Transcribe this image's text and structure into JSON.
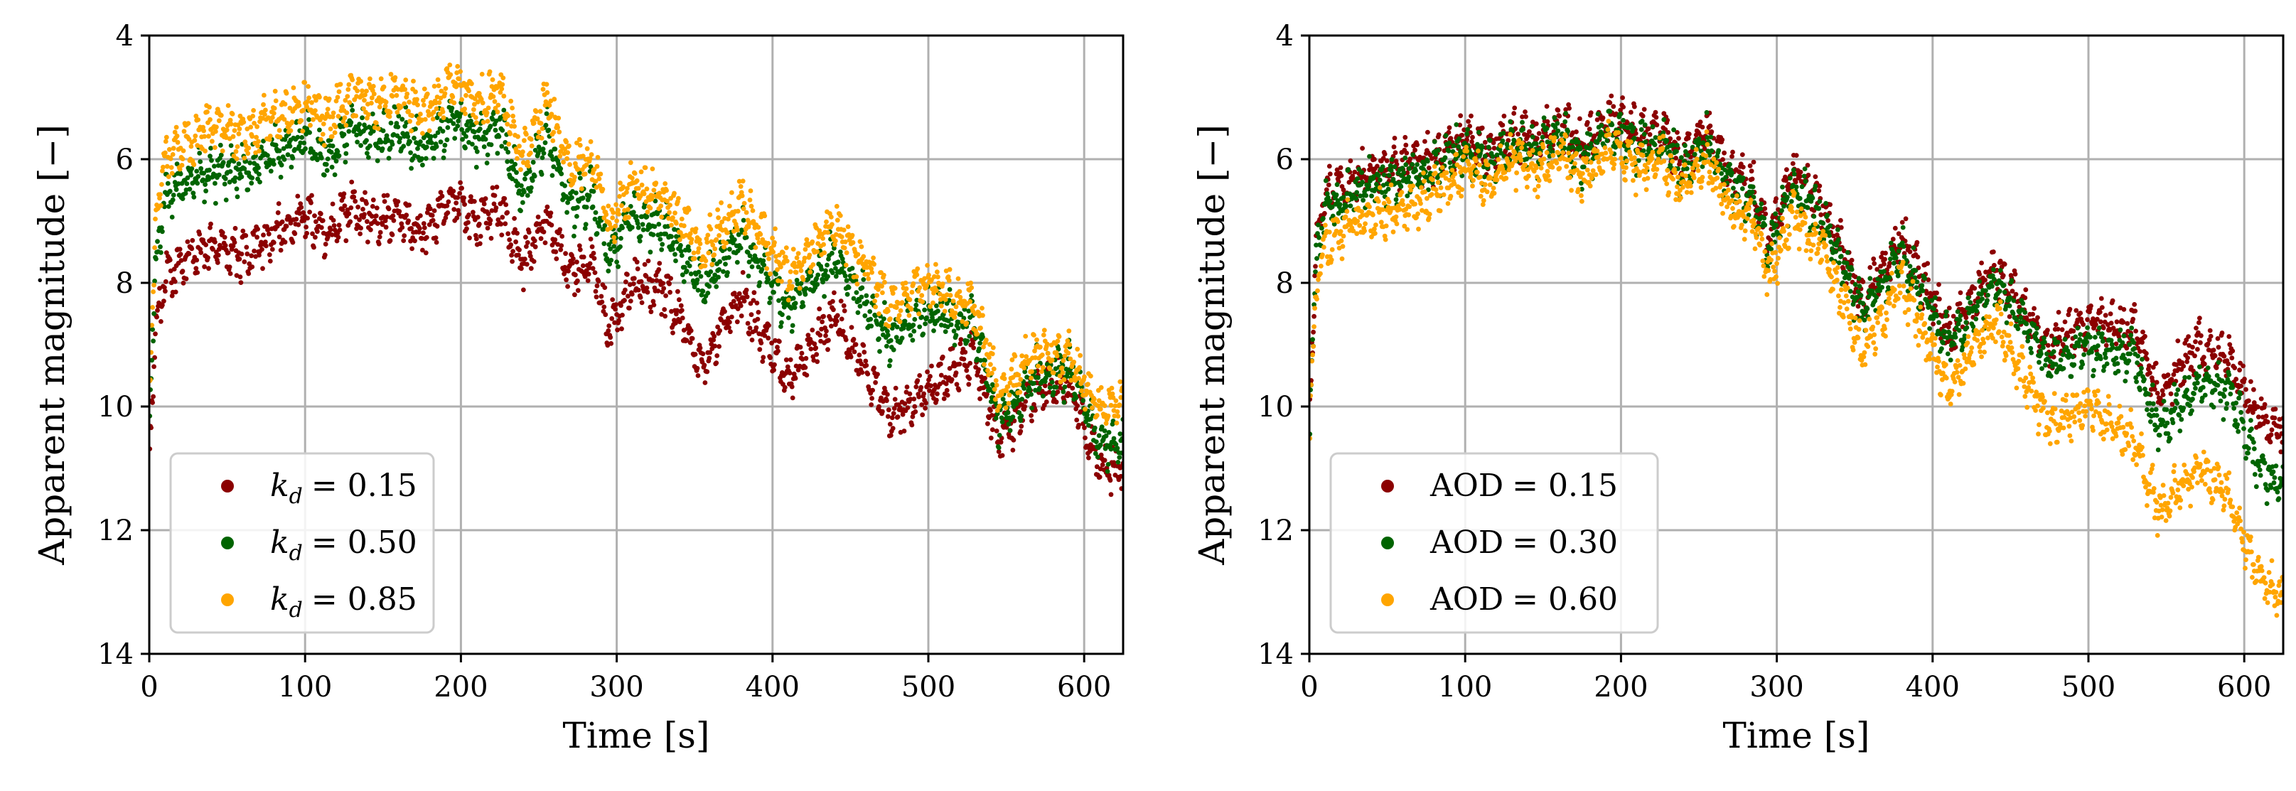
{
  "chart_data": [
    {
      "type": "scatter",
      "title": "",
      "xlabel": "Time [s]",
      "ylabel": "Apparent magnitude [−]",
      "xlim": [
        0,
        625
      ],
      "ylim": [
        14,
        4
      ],
      "y_inverted": true,
      "xticks": [
        "0",
        "100",
        "200",
        "300",
        "400",
        "500",
        "600"
      ],
      "yticks": [
        "4",
        "6",
        "8",
        "10",
        "12",
        "14"
      ],
      "grid": true,
      "legend_position": "lower-left",
      "series": [
        {
          "label_symbol": "k_d",
          "label_value": "= 0.15",
          "color": "#8b0000",
          "x": [
            0,
            5,
            10,
            20,
            40,
            60,
            80,
            100,
            115,
            130,
            145,
            160,
            175,
            195,
            210,
            225,
            240,
            255,
            270,
            285,
            295,
            310,
            330,
            355,
            380,
            410,
            440,
            475,
            500,
            530,
            545,
            570,
            590,
            610,
            625
          ],
          "y": [
            10.5,
            8.6,
            7.9,
            7.7,
            7.4,
            7.6,
            7.2,
            6.9,
            7.2,
            6.8,
            7.0,
            6.9,
            7.2,
            6.6,
            7.0,
            6.8,
            7.7,
            6.9,
            7.8,
            7.7,
            8.8,
            8.0,
            8.1,
            9.3,
            8.2,
            9.6,
            8.5,
            10.2,
            9.7,
            9.2,
            10.6,
            9.7,
            9.6,
            11.0,
            11.0
          ]
        },
        {
          "label_symbol": "k_d",
          "label_value": "= 0.50",
          "color": "#006400",
          "x": [
            0,
            5,
            10,
            20,
            40,
            60,
            80,
            100,
            115,
            130,
            145,
            160,
            175,
            195,
            210,
            225,
            240,
            255,
            270,
            285,
            295,
            310,
            330,
            355,
            380,
            410,
            440,
            475,
            500,
            530,
            545,
            570,
            590,
            610,
            625
          ],
          "y": [
            10.0,
            7.5,
            6.6,
            6.4,
            6.2,
            6.2,
            5.9,
            5.6,
            6.0,
            5.5,
            5.7,
            5.5,
            5.9,
            5.3,
            5.7,
            5.5,
            6.6,
            5.6,
            6.8,
            6.6,
            7.6,
            6.9,
            7.1,
            8.1,
            7.2,
            8.4,
            7.6,
            8.9,
            8.4,
            8.7,
            10.2,
            9.5,
            9.4,
            10.6,
            10.6
          ]
        },
        {
          "label_symbol": "k_d",
          "label_value": "= 0.85",
          "color": "#ffa500",
          "x": [
            0,
            5,
            10,
            20,
            40,
            60,
            80,
            100,
            115,
            130,
            145,
            160,
            175,
            195,
            210,
            225,
            240,
            255,
            270,
            285,
            295,
            310,
            330,
            355,
            380,
            410,
            440,
            475,
            500,
            530,
            545,
            570,
            590,
            610,
            625
          ],
          "y": [
            9.6,
            6.8,
            6.0,
            5.8,
            5.5,
            5.6,
            5.3,
            5.1,
            5.4,
            4.9,
            5.1,
            4.9,
            5.3,
            4.7,
            5.1,
            4.9,
            6.0,
            5.0,
            6.2,
            6.0,
            7.1,
            6.4,
            6.6,
            7.5,
            6.7,
            7.9,
            7.0,
            8.4,
            8.0,
            8.4,
            9.8,
            9.1,
            9.2,
            10.0,
            10.0
          ]
        }
      ]
    },
    {
      "type": "scatter",
      "title": "",
      "xlabel": "Time [s]",
      "ylabel": "Apparent magnitude [−]",
      "xlim": [
        0,
        625
      ],
      "ylim": [
        14,
        4
      ],
      "y_inverted": true,
      "xticks": [
        "0",
        "100",
        "200",
        "300",
        "400",
        "500",
        "600"
      ],
      "yticks": [
        "4",
        "6",
        "8",
        "10",
        "12",
        "14"
      ],
      "grid": true,
      "legend_position": "lower-left",
      "series": [
        {
          "label_symbol": "AOD",
          "label_value": "= 0.15",
          "color": "#8b0000",
          "x": [
            0,
            5,
            10,
            20,
            40,
            60,
            80,
            100,
            115,
            130,
            145,
            160,
            175,
            195,
            210,
            225,
            240,
            255,
            270,
            285,
            295,
            310,
            330,
            355,
            380,
            410,
            440,
            475,
            500,
            530,
            545,
            570,
            590,
            610,
            625
          ],
          "y": [
            10.0,
            7.2,
            6.6,
            6.5,
            6.2,
            6.1,
            6.0,
            5.6,
            5.9,
            5.6,
            5.7,
            5.4,
            5.8,
            5.3,
            5.6,
            5.5,
            6.0,
            5.5,
            6.2,
            6.5,
            7.3,
            6.2,
            6.8,
            8.3,
            7.3,
            8.8,
            7.8,
            9.0,
            8.6,
            8.8,
            9.8,
            9.0,
            9.2,
            10.2,
            10.4
          ]
        },
        {
          "label_symbol": "AOD",
          "label_value": "= 0.30",
          "color": "#006400",
          "x": [
            0,
            5,
            10,
            20,
            40,
            60,
            80,
            100,
            115,
            130,
            145,
            160,
            175,
            195,
            210,
            225,
            240,
            255,
            270,
            285,
            295,
            310,
            330,
            355,
            380,
            410,
            440,
            475,
            500,
            530,
            545,
            570,
            590,
            610,
            625
          ],
          "y": [
            10.1,
            7.4,
            6.8,
            6.7,
            6.4,
            6.3,
            6.2,
            5.8,
            6.1,
            5.8,
            5.9,
            5.6,
            6.0,
            5.5,
            5.8,
            5.7,
            6.2,
            5.7,
            6.4,
            6.7,
            7.5,
            6.4,
            7.0,
            8.5,
            7.5,
            9.0,
            8.0,
            9.3,
            9.0,
            9.2,
            10.4,
            9.6,
            9.8,
            11.0,
            11.3
          ]
        },
        {
          "label_symbol": "AOD",
          "label_value": "= 0.60",
          "color": "#ffa500",
          "x": [
            0,
            5,
            10,
            20,
            40,
            60,
            80,
            100,
            115,
            130,
            145,
            160,
            175,
            195,
            210,
            225,
            240,
            255,
            270,
            285,
            295,
            310,
            330,
            355,
            380,
            410,
            440,
            475,
            500,
            530,
            545,
            570,
            590,
            610,
            625
          ],
          "y": [
            10.3,
            8.0,
            7.4,
            7.2,
            6.9,
            6.8,
            6.6,
            6.1,
            6.4,
            6.0,
            6.2,
            5.9,
            6.3,
            5.8,
            6.1,
            6.0,
            6.5,
            6.0,
            6.8,
            7.0,
            7.9,
            6.9,
            7.5,
            9.1,
            8.0,
            9.7,
            8.6,
            10.3,
            10.0,
            10.6,
            11.7,
            11.0,
            11.4,
            12.8,
            13.1
          ]
        }
      ]
    }
  ]
}
